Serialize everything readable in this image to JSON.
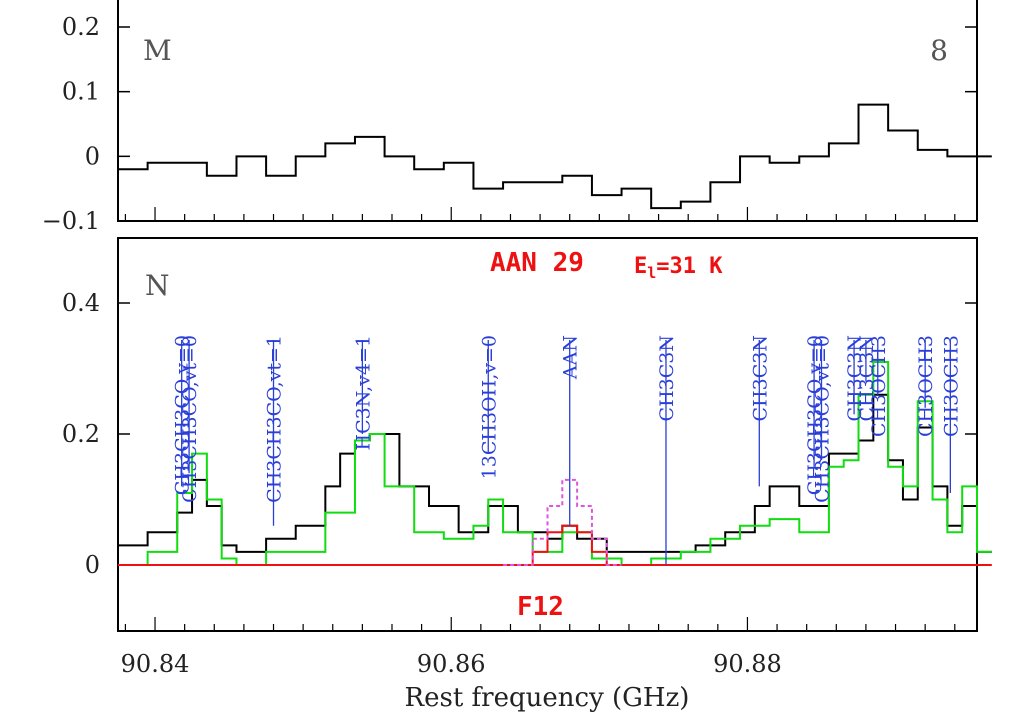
{
  "chart_data": [
    {
      "type": "line",
      "panel": "top",
      "label_left": "M",
      "label_right": "8",
      "x_range": [
        90.8375,
        90.8955
      ],
      "ylim": [
        -0.1,
        0.23
      ],
      "yticks": [
        -0.1,
        0,
        0.1,
        0.2
      ],
      "ytick_labels": [
        "−0.1",
        "0",
        "0.1",
        "0.2"
      ],
      "series": [
        {
          "color": "#000000",
          "step": true,
          "x": [
            90.8375,
            90.8395,
            90.8415,
            90.8435,
            90.8455,
            90.8475,
            90.8495,
            90.8515,
            90.8535,
            90.8555,
            90.8575,
            90.8595,
            90.8615,
            90.8635,
            90.8655,
            90.8675,
            90.8695,
            90.8715,
            90.8735,
            90.8755,
            90.8775,
            90.8795,
            90.8815,
            90.8835,
            90.8855,
            90.8875,
            90.8895,
            90.8915,
            90.8935,
            90.8955
          ],
          "y": [
            -0.02,
            -0.01,
            -0.01,
            -0.03,
            0.0,
            -0.03,
            0.0,
            0.02,
            0.03,
            0.0,
            -0.02,
            -0.01,
            -0.05,
            -0.04,
            -0.04,
            -0.03,
            -0.06,
            -0.05,
            -0.08,
            -0.07,
            -0.04,
            0.0,
            -0.01,
            0.0,
            0.02,
            0.08,
            0.04,
            0.01,
            0.0,
            0.0
          ]
        }
      ]
    },
    {
      "type": "line",
      "panel": "bottom",
      "label_left": "N",
      "annotation": "AAN 29",
      "energy_label_main": "E",
      "energy_label_sub": "l",
      "energy_label_rest": "=31 K",
      "bottom_label": "F12",
      "xlabel": "Rest frequency (GHz)",
      "x_range": [
        90.8375,
        90.8955
      ],
      "ylim": [
        -0.1,
        0.5
      ],
      "xticks": [
        90.84,
        90.86,
        90.88
      ],
      "xtick_labels": [
        "90.84",
        "90.86",
        "90.88"
      ],
      "yticks": [
        0,
        0.2,
        0.4
      ],
      "ytick_labels": [
        "0",
        "0.2",
        "0.4"
      ],
      "series": [
        {
          "color": "#000000",
          "step": true,
          "x": [
            90.8375,
            90.8395,
            90.8415,
            90.8425,
            90.8435,
            90.8445,
            90.8455,
            90.8475,
            90.8495,
            90.8515,
            90.8525,
            90.8535,
            90.8545,
            90.8565,
            90.8585,
            90.8605,
            90.8625,
            90.8645,
            90.8665,
            90.8675,
            90.8685,
            90.8705,
            90.8725,
            90.8745,
            90.8765,
            90.8785,
            90.8805,
            90.8815,
            90.8835,
            90.8855,
            90.8875,
            90.8885,
            90.8895,
            90.8905,
            90.8915,
            90.8925,
            90.8935,
            90.8945,
            90.8955
          ],
          "y": [
            0.03,
            0.05,
            0.08,
            0.13,
            0.09,
            0.03,
            0.02,
            0.04,
            0.06,
            0.12,
            0.17,
            0.19,
            0.2,
            0.12,
            0.09,
            0.05,
            0.09,
            0.05,
            0.04,
            0.06,
            0.04,
            0.02,
            0.02,
            0.02,
            0.03,
            0.05,
            0.09,
            0.12,
            0.09,
            0.17,
            0.19,
            0.26,
            0.16,
            0.1,
            0.21,
            0.12,
            0.06,
            0.09,
            0.02
          ]
        },
        {
          "color": "#11dd11",
          "step": true,
          "x": [
            90.8375,
            90.8395,
            90.8415,
            90.8425,
            90.8435,
            90.8445,
            90.8455,
            90.8475,
            90.8495,
            90.8515,
            90.8535,
            90.8545,
            90.8555,
            90.8575,
            90.8595,
            90.8615,
            90.8625,
            90.8635,
            90.8655,
            90.8675,
            90.8695,
            90.8715,
            90.8735,
            90.8755,
            90.8775,
            90.8795,
            90.8815,
            90.8835,
            90.8855,
            90.8865,
            90.8875,
            90.8885,
            90.8895,
            90.8905,
            90.8915,
            90.8925,
            90.8935,
            90.8945,
            90.8955
          ],
          "y": [
            0.0,
            0.02,
            0.11,
            0.17,
            0.1,
            0.01,
            0.0,
            0.02,
            0.02,
            0.08,
            0.19,
            0.2,
            0.12,
            0.05,
            0.04,
            0.06,
            0.1,
            0.05,
            0.02,
            0.05,
            0.01,
            0.0,
            0.01,
            0.02,
            0.04,
            0.06,
            0.07,
            0.05,
            0.15,
            0.16,
            0.26,
            0.31,
            0.15,
            0.12,
            0.25,
            0.1,
            0.05,
            0.12,
            0.02
          ]
        },
        {
          "color": "#ee1111",
          "step": true,
          "x": [
            90.8375,
            90.8635,
            90.8655,
            90.8665,
            90.8675,
            90.8685,
            90.8695,
            90.8705,
            90.8955
          ],
          "y": [
            0.0,
            0.0,
            0.02,
            0.05,
            0.06,
            0.05,
            0.02,
            0.0,
            0.0
          ]
        },
        {
          "color": "#dd55dd",
          "dashed": true,
          "step": true,
          "x": [
            90.8635,
            90.8655,
            90.8665,
            90.8675,
            90.8685,
            90.8695,
            90.8705
          ],
          "y": [
            0.0,
            0.04,
            0.09,
            0.13,
            0.09,
            0.04,
            0.0
          ]
        }
      ],
      "line_labels": [
        {
          "freq": 90.8418,
          "y_bottom": 0.12,
          "label": "CH3CH3CO,v=0"
        },
        {
          "freq": 90.8423,
          "y_bottom": 0.14,
          "label": "CH3CH3CO,vt=0"
        },
        {
          "freq": 90.848,
          "y_bottom": 0.06,
          "label": "CH3CH3CO,vt=1"
        },
        {
          "freq": 90.854,
          "y_bottom": 0.2,
          "label": "HC3N,v4=1"
        },
        {
          "freq": 90.8625,
          "y_bottom": 0.17,
          "label": "13CH3OH,v=0"
        },
        {
          "freq": 90.868,
          "y_bottom": 0.06,
          "label": "AAN"
        },
        {
          "freq": 90.8745,
          "y_bottom": 0.0,
          "label": "CH3C3N"
        },
        {
          "freq": 90.8808,
          "y_bottom": 0.12,
          "label": "CH3C3N"
        },
        {
          "freq": 90.8845,
          "y_bottom": 0.15,
          "label": "CH3CH3CO,v=0"
        },
        {
          "freq": 90.885,
          "y_bottom": 0.16,
          "label": "CH3CH3CO,vt=0"
        },
        {
          "freq": 90.8872,
          "y_bottom": 0.23,
          "label": "CH3C3N"
        },
        {
          "freq": 90.888,
          "y_bottom": 0.28,
          "label": "CH3C3N"
        },
        {
          "freq": 90.8888,
          "y_bottom": 0.26,
          "label": "CH3OCH3"
        },
        {
          "freq": 90.892,
          "y_bottom": 0.24,
          "label": "CH3OCH3"
        },
        {
          "freq": 90.8937,
          "y_bottom": 0.11,
          "label": "CH3OCH3"
        }
      ]
    }
  ]
}
